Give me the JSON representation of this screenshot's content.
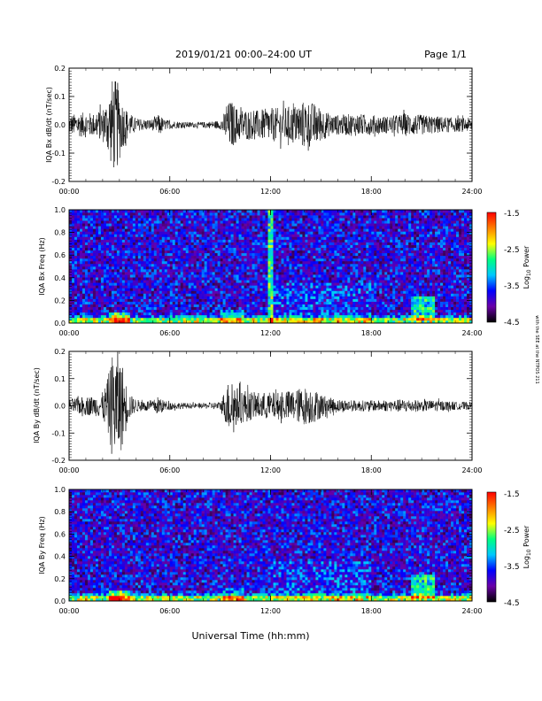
{
  "header": {
    "title": "2019/01/21   00:00–24:00 UT",
    "page": "Page 1/1"
  },
  "xlabel": "Universal Time (hh:mm)",
  "side_note": "with the SEE at the NTPOS 211",
  "colorbar": {
    "label": "Log",
    "label_sub": "10",
    "label_tail": " Power",
    "ticks": [
      "-1.5",
      "-2.5",
      "-3.5",
      "-4.5"
    ]
  },
  "time_ticks": [
    "00:00",
    "06:00",
    "12:00",
    "18:00",
    "24:00"
  ],
  "colors": {
    "trace": "#000000",
    "colormap": [
      "#000000",
      "#6a00a8",
      "#0000ff",
      "#00c8ff",
      "#00ff80",
      "#ffff00",
      "#ff8000",
      "#ff0000"
    ]
  },
  "chart_data": [
    {
      "type": "line",
      "title": "",
      "xlabel": "00:00–24:00",
      "ylabel": "IQA Bx dB/dt (nT/sec)",
      "yticks": [
        "0.2",
        "0.1",
        "0.0",
        "-0.1",
        "-0.2"
      ],
      "ylim": [
        -0.2,
        0.2
      ],
      "xlim": [
        0,
        24
      ],
      "envelope": {
        "x": [
          0,
          0.5,
          1.0,
          1.5,
          2.0,
          2.3,
          2.6,
          2.9,
          3.2,
          3.5,
          3.8,
          4.2,
          5.0,
          5.4,
          5.6,
          6.0,
          7.0,
          8.0,
          9.0,
          9.3,
          9.6,
          10.0,
          11.0,
          12.0,
          12.5,
          13.0,
          13.5,
          14.0,
          14.5,
          15.0,
          15.5,
          16.0,
          17.0,
          18.0,
          19.0,
          20.0,
          21.0,
          22.0,
          23.0,
          24.0
        ],
        "amplitude": [
          0.035,
          0.04,
          0.045,
          0.04,
          0.06,
          0.09,
          0.17,
          0.15,
          0.08,
          0.05,
          0.03,
          0.02,
          0.02,
          0.04,
          0.02,
          0.015,
          0.01,
          0.01,
          0.015,
          0.05,
          0.09,
          0.06,
          0.05,
          0.06,
          0.06,
          0.065,
          0.07,
          0.085,
          0.08,
          0.06,
          0.04,
          0.035,
          0.04,
          0.035,
          0.03,
          0.04,
          0.035,
          0.03,
          0.025,
          0.025
        ]
      }
    },
    {
      "type": "heatmap",
      "title": "",
      "xlabel": "00:00–24:00",
      "ylabel": "IQA Bx Freq (Hz)",
      "yticks": [
        "1.0",
        "0.8",
        "0.6",
        "0.4",
        "0.2",
        "0.0"
      ],
      "ylim": [
        0,
        1.0
      ],
      "xlim": [
        0,
        24
      ],
      "zlim": [
        -4.5,
        -1.5
      ],
      "features": [
        {
          "label": "background",
          "log_power": -3.8
        },
        {
          "label": "low-freq band 0.0–0.02 Hz",
          "log_power": -2.5
        },
        {
          "label": "enhancement 02:30–03:30, 0.0–0.05 Hz",
          "log_power": -2.3
        },
        {
          "label": "vertical stripe at 12:00",
          "log_power": -2.6
        },
        {
          "label": "enhancement 20:30–21:30, 0.05–0.2 Hz",
          "log_power": -2.6
        }
      ]
    },
    {
      "type": "line",
      "title": "",
      "xlabel": "00:00–24:00",
      "ylabel": "IQA By dB/dt (nT/sec)",
      "yticks": [
        "0.2",
        "0.1",
        "0.0",
        "-0.1",
        "-0.2"
      ],
      "ylim": [
        -0.2,
        0.2
      ],
      "xlim": [
        0,
        24
      ],
      "envelope": {
        "x": [
          0,
          0.5,
          1.0,
          1.5,
          2.0,
          2.3,
          2.6,
          2.9,
          3.2,
          3.5,
          3.8,
          4.2,
          5.0,
          5.4,
          5.6,
          6.0,
          7.0,
          8.0,
          9.0,
          9.3,
          9.6,
          10.0,
          11.0,
          12.0,
          12.5,
          13.0,
          13.5,
          14.0,
          14.5,
          15.0,
          15.5,
          16.0,
          17.0,
          18.0,
          19.0,
          20.0,
          21.0,
          22.0,
          23.0,
          24.0
        ],
        "amplitude": [
          0.025,
          0.03,
          0.035,
          0.035,
          0.05,
          0.1,
          0.2,
          0.2,
          0.15,
          0.06,
          0.03,
          0.02,
          0.02,
          0.04,
          0.02,
          0.015,
          0.01,
          0.01,
          0.015,
          0.06,
          0.11,
          0.07,
          0.05,
          0.05,
          0.05,
          0.055,
          0.06,
          0.07,
          0.065,
          0.045,
          0.03,
          0.025,
          0.02,
          0.02,
          0.02,
          0.025,
          0.02,
          0.02,
          0.015,
          0.015
        ]
      }
    },
    {
      "type": "heatmap",
      "title": "",
      "xlabel": "00:00–24:00",
      "ylabel": "IQA By Freq (Hz)",
      "yticks": [
        "1.0",
        "0.8",
        "0.6",
        "0.4",
        "0.2",
        "0.0"
      ],
      "ylim": [
        0,
        1.0
      ],
      "xlim": [
        0,
        24
      ],
      "zlim": [
        -4.5,
        -1.5
      ],
      "features": [
        {
          "label": "background",
          "log_power": -3.8
        },
        {
          "label": "low-freq band 0.0–0.05 Hz",
          "log_power": -2.6
        },
        {
          "label": "enhancement 02:30–03:30, 0.0–0.08 Hz",
          "log_power": -2.4
        },
        {
          "label": "enhancement 20:30–21:30, 0.05–0.15 Hz",
          "log_power": -2.6
        }
      ]
    }
  ]
}
